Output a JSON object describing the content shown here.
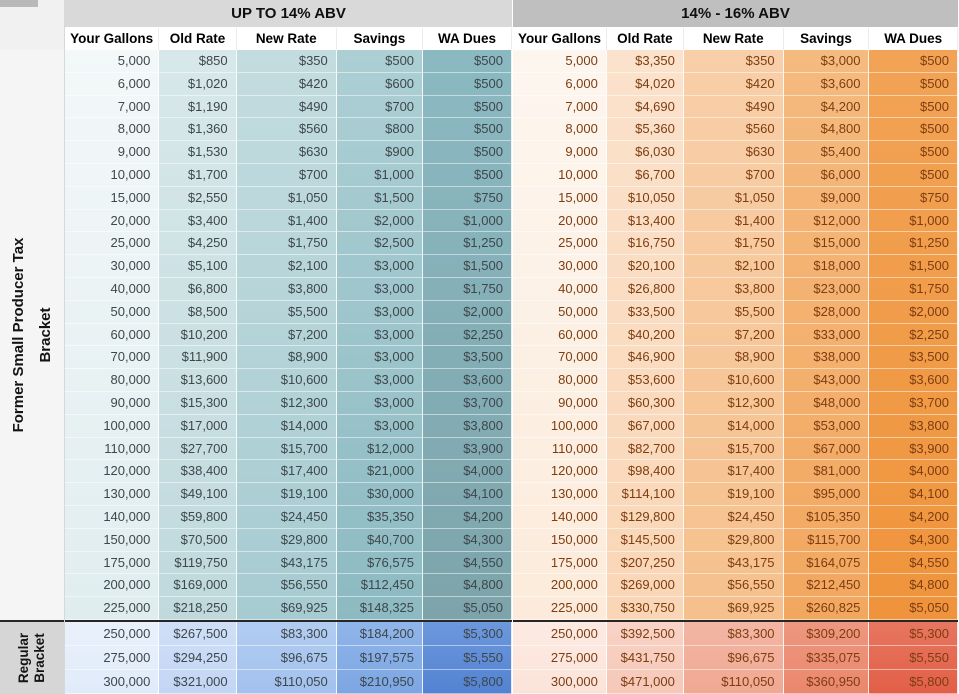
{
  "row_groups": {
    "former": {
      "name": "Former Small Producer Tax Bracket",
      "lines": [
        "Former Small Producer Tax",
        "Bracket"
      ]
    },
    "regular": {
      "name": "Regular Bracket",
      "lines": [
        "Regular",
        "Bracket"
      ]
    }
  },
  "styles": {
    "separator_color": "#262626",
    "left_title_bg": "#d9d9d9",
    "right_title_bg": "#bfbfbf",
    "left_text_color": "#3e474b",
    "right_text_color": "#7e3d10"
  },
  "chart_data": [
    {
      "type": "table",
      "title": "UP TO 14% ABV",
      "title_bg": "#d9d9d9",
      "text_color": "#3e474b",
      "col_gradients": [
        [
          "#f3f8f9",
          "#e0edef"
        ],
        [
          "#d8e8ea",
          "#bfd9dd"
        ],
        [
          "#c3dcdf",
          "#a6cbd1"
        ],
        [
          "#accfd4",
          "#8dbac2"
        ],
        [
          "#8bb9c2",
          "#7da4ab"
        ]
      ],
      "regular_gradients": [
        [
          "#e9f1fb",
          "#e0ebfa"
        ],
        [
          "#cfdff7",
          "#c2d6f4"
        ],
        [
          "#b3cdf1",
          "#a2c1ee"
        ],
        [
          "#90b5e9",
          "#7ca6e3"
        ],
        [
          "#6d98dd",
          "#5282d2"
        ]
      ],
      "columns": [
        "Your Gallons",
        "Old Rate",
        "New Rate",
        "Savings",
        "WA Dues"
      ],
      "rows": [
        [
          "5,000",
          "$850",
          "$350",
          "$500",
          "$500"
        ],
        [
          "6,000",
          "$1,020",
          "$420",
          "$600",
          "$500"
        ],
        [
          "7,000",
          "$1,190",
          "$490",
          "$700",
          "$500"
        ],
        [
          "8,000",
          "$1,360",
          "$560",
          "$800",
          "$500"
        ],
        [
          "9,000",
          "$1,530",
          "$630",
          "$900",
          "$500"
        ],
        [
          "10,000",
          "$1,700",
          "$700",
          "$1,000",
          "$500"
        ],
        [
          "15,000",
          "$2,550",
          "$1,050",
          "$1,500",
          "$750"
        ],
        [
          "20,000",
          "$3,400",
          "$1,400",
          "$2,000",
          "$1,000"
        ],
        [
          "25,000",
          "$4,250",
          "$1,750",
          "$2,500",
          "$1,250"
        ],
        [
          "30,000",
          "$5,100",
          "$2,100",
          "$3,000",
          "$1,500"
        ],
        [
          "40,000",
          "$6,800",
          "$3,800",
          "$3,000",
          "$1,750"
        ],
        [
          "50,000",
          "$8,500",
          "$5,500",
          "$3,000",
          "$2,000"
        ],
        [
          "60,000",
          "$10,200",
          "$7,200",
          "$3,000",
          "$2,250"
        ],
        [
          "70,000",
          "$11,900",
          "$8,900",
          "$3,000",
          "$3,500"
        ],
        [
          "80,000",
          "$13,600",
          "$10,600",
          "$3,000",
          "$3,600"
        ],
        [
          "90,000",
          "$15,300",
          "$12,300",
          "$3,000",
          "$3,700"
        ],
        [
          "100,000",
          "$17,000",
          "$14,000",
          "$3,000",
          "$3,800"
        ],
        [
          "110,000",
          "$27,700",
          "$15,700",
          "$12,000",
          "$3,900"
        ],
        [
          "120,000",
          "$38,400",
          "$17,400",
          "$21,000",
          "$4,000"
        ],
        [
          "130,000",
          "$49,100",
          "$19,100",
          "$30,000",
          "$4,100"
        ],
        [
          "140,000",
          "$59,800",
          "$24,450",
          "$35,350",
          "$4,200"
        ],
        [
          "150,000",
          "$70,500",
          "$29,800",
          "$40,700",
          "$4,300"
        ],
        [
          "175,000",
          "$119,750",
          "$43,175",
          "$76,575",
          "$4,550"
        ],
        [
          "200,000",
          "$169,000",
          "$56,550",
          "$112,450",
          "$4,800"
        ],
        [
          "225,000",
          "$218,250",
          "$69,925",
          "$148,325",
          "$5,050"
        ]
      ],
      "regular_rows": [
        [
          "250,000",
          "$267,500",
          "$83,300",
          "$184,200",
          "$5,300"
        ],
        [
          "275,000",
          "$294,250",
          "$96,675",
          "$197,575",
          "$5,550"
        ],
        [
          "300,000",
          "$321,000",
          "$110,050",
          "$210,950",
          "$5,800"
        ]
      ]
    },
    {
      "type": "table",
      "title": "14% - 16% ABV",
      "title_bg": "#bfbfbf",
      "text_color": "#7e3d10",
      "col_gradients": [
        [
          "#fdf6ef",
          "#fcebdb"
        ],
        [
          "#fbe2cc",
          "#f9d6b6"
        ],
        [
          "#f8cfa9",
          "#f5c08c"
        ],
        [
          "#f5ba7f",
          "#f2a75f"
        ],
        [
          "#f2a355",
          "#ef943c"
        ]
      ],
      "regular_gradients": [
        [
          "#fcebe3",
          "#fbe3d9"
        ],
        [
          "#f8d3c6",
          "#f6c8b8"
        ],
        [
          "#f3b6a4",
          "#f0a892"
        ],
        [
          "#ee9780",
          "#ea876d"
        ],
        [
          "#e77660",
          "#e25f47"
        ]
      ],
      "columns": [
        "Your Gallons",
        "Old Rate",
        "New Rate",
        "Savings",
        "WA Dues"
      ],
      "rows": [
        [
          "5,000",
          "$3,350",
          "$350",
          "$3,000",
          "$500"
        ],
        [
          "6,000",
          "$4,020",
          "$420",
          "$3,600",
          "$500"
        ],
        [
          "7,000",
          "$4,690",
          "$490",
          "$4,200",
          "$500"
        ],
        [
          "8,000",
          "$5,360",
          "$560",
          "$4,800",
          "$500"
        ],
        [
          "9,000",
          "$6,030",
          "$630",
          "$5,400",
          "$500"
        ],
        [
          "10,000",
          "$6,700",
          "$700",
          "$6,000",
          "$500"
        ],
        [
          "15,000",
          "$10,050",
          "$1,050",
          "$9,000",
          "$750"
        ],
        [
          "20,000",
          "$13,400",
          "$1,400",
          "$12,000",
          "$1,000"
        ],
        [
          "25,000",
          "$16,750",
          "$1,750",
          "$15,000",
          "$1,250"
        ],
        [
          "30,000",
          "$20,100",
          "$2,100",
          "$18,000",
          "$1,500"
        ],
        [
          "40,000",
          "$26,800",
          "$3,800",
          "$23,000",
          "$1,750"
        ],
        [
          "50,000",
          "$33,500",
          "$5,500",
          "$28,000",
          "$2,000"
        ],
        [
          "60,000",
          "$40,200",
          "$7,200",
          "$33,000",
          "$2,250"
        ],
        [
          "70,000",
          "$46,900",
          "$8,900",
          "$38,000",
          "$3,500"
        ],
        [
          "80,000",
          "$53,600",
          "$10,600",
          "$43,000",
          "$3,600"
        ],
        [
          "90,000",
          "$60,300",
          "$12,300",
          "$48,000",
          "$3,700"
        ],
        [
          "100,000",
          "$67,000",
          "$14,000",
          "$53,000",
          "$3,800"
        ],
        [
          "110,000",
          "$82,700",
          "$15,700",
          "$67,000",
          "$3,900"
        ],
        [
          "120,000",
          "$98,400",
          "$17,400",
          "$81,000",
          "$4,000"
        ],
        [
          "130,000",
          "$114,100",
          "$19,100",
          "$95,000",
          "$4,100"
        ],
        [
          "140,000",
          "$129,800",
          "$24,450",
          "$105,350",
          "$4,200"
        ],
        [
          "150,000",
          "$145,500",
          "$29,800",
          "$115,700",
          "$4,300"
        ],
        [
          "175,000",
          "$207,250",
          "$43,175",
          "$164,075",
          "$4,550"
        ],
        [
          "200,000",
          "$269,000",
          "$56,550",
          "$212,450",
          "$4,800"
        ],
        [
          "225,000",
          "$330,750",
          "$69,925",
          "$260,825",
          "$5,050"
        ]
      ],
      "regular_rows": [
        [
          "250,000",
          "$392,500",
          "$83,300",
          "$309,200",
          "$5,300"
        ],
        [
          "275,000",
          "$431,750",
          "$96,675",
          "$335,075",
          "$5,550"
        ],
        [
          "300,000",
          "$471,000",
          "$110,050",
          "$360,950",
          "$5,800"
        ]
      ]
    }
  ]
}
